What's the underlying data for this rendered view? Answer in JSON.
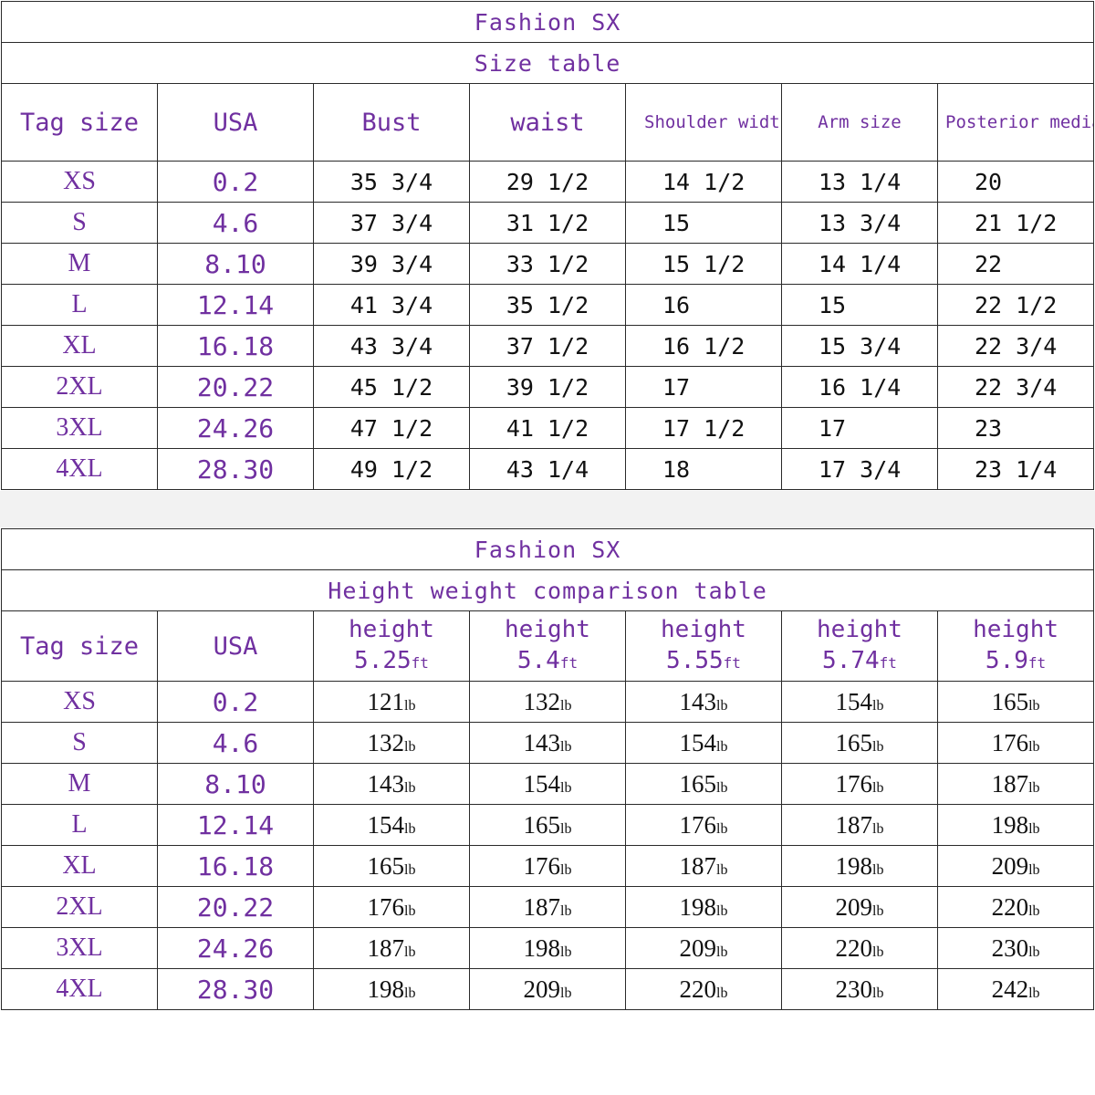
{
  "size_table": {
    "brand": "Fashion SX",
    "title": "Size table",
    "headers": [
      "Tag size",
      "USA",
      "Bust",
      "waist",
      "Shoulder width",
      "Arm size",
      "Posterior median length"
    ],
    "rows": [
      {
        "tag": "XS",
        "usa": "0.2",
        "bust": "35 3/4",
        "waist": "29 1/2",
        "shoulder": "14 1/2",
        "arm": "13 1/4",
        "length": "20"
      },
      {
        "tag": "S",
        "usa": "4.6",
        "bust": "37 3/4",
        "waist": "31 1/2",
        "shoulder": "15",
        "arm": "13 3/4",
        "length": "21 1/2"
      },
      {
        "tag": "M",
        "usa": "8.10",
        "bust": "39 3/4",
        "waist": "33 1/2",
        "shoulder": "15 1/2",
        "arm": "14 1/4",
        "length": "22"
      },
      {
        "tag": "L",
        "usa": "12.14",
        "bust": "41 3/4",
        "waist": "35 1/2",
        "shoulder": "16",
        "arm": "15",
        "length": "22 1/2"
      },
      {
        "tag": "XL",
        "usa": "16.18",
        "bust": "43 3/4",
        "waist": "37 1/2",
        "shoulder": "16 1/2",
        "arm": "15 3/4",
        "length": "22 3/4"
      },
      {
        "tag": "2XL",
        "usa": "20.22",
        "bust": "45 1/2",
        "waist": "39 1/2",
        "shoulder": "17",
        "arm": "16 1/4",
        "length": "22 3/4"
      },
      {
        "tag": "3XL",
        "usa": "24.26",
        "bust": "47 1/2",
        "waist": "41 1/2",
        "shoulder": "17 1/2",
        "arm": "17",
        "length": "23"
      },
      {
        "tag": "4XL",
        "usa": "28.30",
        "bust": "49 1/2",
        "waist": "43 1/4",
        "shoulder": "18",
        "arm": "17 3/4",
        "length": "23 1/4"
      }
    ]
  },
  "weight_table": {
    "brand": "Fashion SX",
    "title": "Height weight comparison table",
    "tag_header": "Tag size",
    "usa_header": "USA",
    "height_label": "height",
    "height_unit": "ft",
    "weight_unit": "lb",
    "heights": [
      "5.25",
      "5.4",
      "5.55",
      "5.74",
      "5.9"
    ],
    "rows": [
      {
        "tag": "XS",
        "usa": "0.2",
        "weights": [
          "121",
          "132",
          "143",
          "154",
          "165"
        ]
      },
      {
        "tag": "S",
        "usa": "4.6",
        "weights": [
          "132",
          "143",
          "154",
          "165",
          "176"
        ]
      },
      {
        "tag": "M",
        "usa": "8.10",
        "weights": [
          "143",
          "154",
          "165",
          "176",
          "187"
        ]
      },
      {
        "tag": "L",
        "usa": "12.14",
        "weights": [
          "154",
          "165",
          "176",
          "187",
          "198"
        ]
      },
      {
        "tag": "XL",
        "usa": "16.18",
        "weights": [
          "165",
          "176",
          "187",
          "198",
          "209"
        ]
      },
      {
        "tag": "2XL",
        "usa": "20.22",
        "weights": [
          "176",
          "187",
          "198",
          "209",
          "220"
        ]
      },
      {
        "tag": "3XL",
        "usa": "24.26",
        "weights": [
          "187",
          "198",
          "209",
          "220",
          "230"
        ]
      },
      {
        "tag": "4XL",
        "usa": "28.30",
        "weights": [
          "198",
          "209",
          "220",
          "230",
          "242"
        ]
      }
    ]
  },
  "colors": {
    "header_text": "#7030a0",
    "value_text": "#111111",
    "border": "#2a2a2a"
  }
}
